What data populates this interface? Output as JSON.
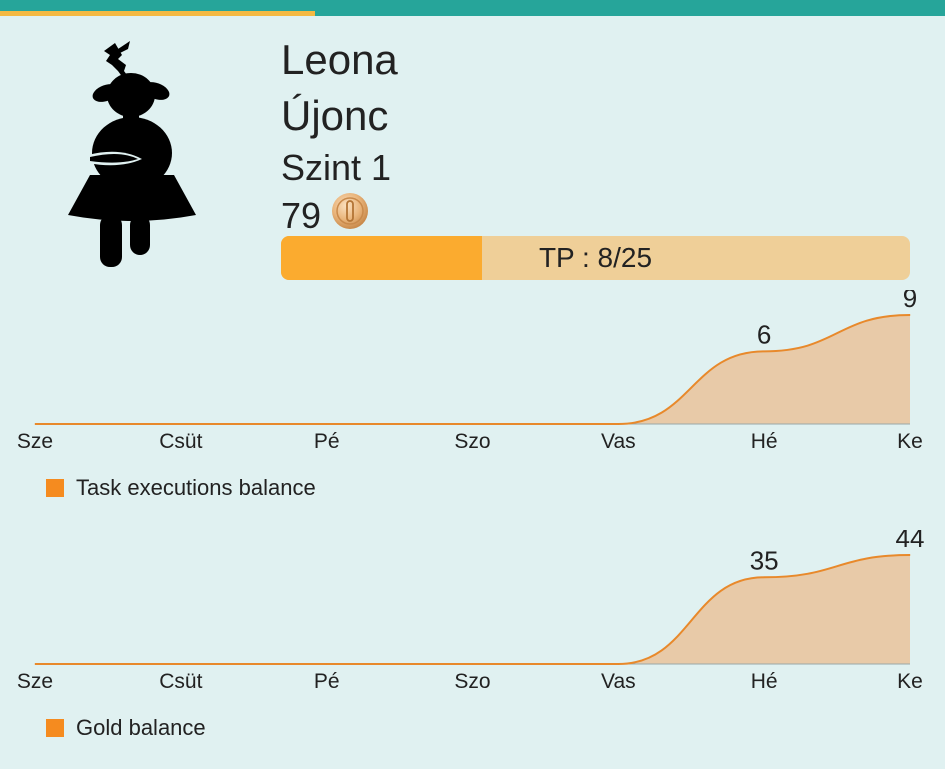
{
  "profile": {
    "name": "Leona",
    "rank": "Újonc",
    "level": "Szint 1",
    "gold": "79",
    "tp_text": "TP : 8/25",
    "tp_current": 8,
    "tp_max": 25
  },
  "icons": {
    "avatar": "deer-girl-avatar-icon",
    "coin": "gold-coin-icon"
  },
  "colors": {
    "header": "#26a59a",
    "header_progress": "#f4b942",
    "background": "#e0f1f1",
    "tp_fill": "#fbab2f",
    "tp_track": "#efcf98",
    "series_line": "#e8892b",
    "series_fill": "#e8caa8",
    "legend_swatch": "#f58b1f"
  },
  "chart_data": [
    {
      "type": "area",
      "categories": [
        "Sze",
        "Csüt",
        "Pé",
        "Szo",
        "Vas",
        "Hé",
        "Ke"
      ],
      "series": [
        {
          "name": "Task executions balance",
          "values": [
            0,
            0,
            0,
            0,
            0,
            6,
            9
          ]
        }
      ],
      "data_labels": [
        "",
        "",
        "",
        "",
        "",
        "6",
        "9"
      ],
      "ylim": [
        0,
        9
      ],
      "legend": "bottom-left",
      "grid": false
    },
    {
      "type": "area",
      "categories": [
        "Sze",
        "Csüt",
        "Pé",
        "Szo",
        "Vas",
        "Hé",
        "Ke"
      ],
      "series": [
        {
          "name": "Gold balance",
          "values": [
            0,
            0,
            0,
            0,
            0,
            35,
            44
          ]
        }
      ],
      "data_labels": [
        "",
        "",
        "",
        "",
        "",
        "35",
        "44"
      ],
      "ylim": [
        0,
        44
      ],
      "legend": "bottom-left",
      "grid": false
    }
  ]
}
